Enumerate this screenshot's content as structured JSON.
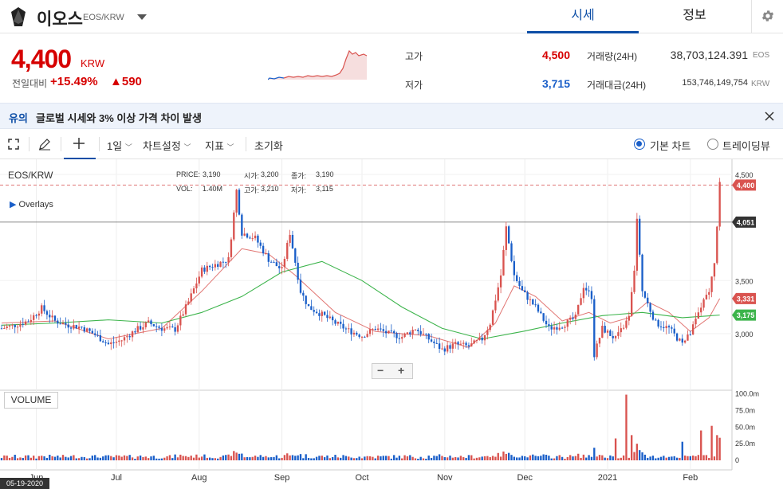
{
  "header": {
    "coin_name": "이오스",
    "pair": "EOS/KRW",
    "tabs": [
      {
        "label": "시세",
        "active": true
      },
      {
        "label": "정보",
        "active": false
      }
    ],
    "settings_icon": "gear-icon"
  },
  "summary": {
    "price": "4,400",
    "unit": "KRW",
    "change_label": "전일대비",
    "change_pct": "+15.49%",
    "change_abs": "▲590",
    "high_label": "고가",
    "high": "4,500",
    "low_label": "저가",
    "low": "3,715",
    "volume_label": "거래량(24H)",
    "volume": "38,703,124.391",
    "volume_unit": "EOS",
    "value_label": "거래대금(24H)",
    "value": "153,746,149,754",
    "value_unit": "KRW"
  },
  "notice": {
    "tag": "유의",
    "text": "글로벌 시세와 3% 이상 가격 차이 발생"
  },
  "toolbar": {
    "interval": "1일",
    "chart_settings": "차트설정",
    "indicators": "지표",
    "reset": "초기화",
    "basic_chart": "기본 차트",
    "tradingview": "트레이딩뷰"
  },
  "chart": {
    "pair": "EOS/KRW",
    "overlays": "Overlays",
    "ohlc": {
      "price_label": "PRICE:",
      "price": "3,190",
      "open_label": "시가:",
      "open": "3,200",
      "close_label": "종가:",
      "close": "3,190",
      "vol_label": "VOL:",
      "vol": "1.40M",
      "high_label": "고가:",
      "high": "3,210",
      "low_label": "저가:",
      "low": "3,115"
    },
    "volume_label": "VOLUME",
    "date_badge": "05-19-2020",
    "zoom_minus": "−",
    "zoom_plus": "+"
  },
  "chart_data": {
    "type": "candlestick",
    "price_axis": [
      {
        "label": "4,500",
        "value": 4500
      },
      {
        "label": "3,500",
        "value": 3500
      },
      {
        "label": "3,000",
        "value": 3000
      }
    ],
    "price_markers": [
      {
        "label": "4,400",
        "value": 4400,
        "color": "#d9534f"
      },
      {
        "label": "4,051",
        "value": 4051,
        "color": "#333333"
      },
      {
        "label": "3,331",
        "value": 3331,
        "color": "#d9534f"
      },
      {
        "label": "3,175",
        "value": 3175,
        "color": "#3cb44b"
      }
    ],
    "volume_axis": [
      {
        "label": "100.0m",
        "value": 100
      },
      {
        "label": "75.0m",
        "value": 75
      },
      {
        "label": "50.0m",
        "value": 50
      },
      {
        "label": "25.0m",
        "value": 25
      },
      {
        "label": "0",
        "value": 0
      }
    ],
    "x_labels": [
      "Jun",
      "Jul",
      "Aug",
      "Sep",
      "Oct",
      "Nov",
      "Dec",
      "2021",
      "Feb"
    ],
    "month_days": [
      13,
      43,
      74,
      105,
      135,
      166,
      196,
      227,
      258
    ],
    "close_path": [
      [
        0,
        3050
      ],
      [
        5,
        3080
      ],
      [
        10,
        3120
      ],
      [
        15,
        3240
      ],
      [
        20,
        3120
      ],
      [
        25,
        3080
      ],
      [
        30,
        3060
      ],
      [
        35,
        2990
      ],
      [
        40,
        2900
      ],
      [
        45,
        2940
      ],
      [
        50,
        3030
      ],
      [
        55,
        3100
      ],
      [
        60,
        3050
      ],
      [
        65,
        3040
      ],
      [
        70,
        3300
      ],
      [
        75,
        3600
      ],
      [
        80,
        3650
      ],
      [
        85,
        3700
      ],
      [
        88,
        4350
      ],
      [
        90,
        3950
      ],
      [
        95,
        3900
      ],
      [
        100,
        3700
      ],
      [
        105,
        3600
      ],
      [
        108,
        3950
      ],
      [
        112,
        3400
      ],
      [
        115,
        3250
      ],
      [
        120,
        3180
      ],
      [
        125,
        3100
      ],
      [
        130,
        3030
      ],
      [
        135,
        2980
      ],
      [
        140,
        3050
      ],
      [
        145,
        3000
      ],
      [
        150,
        2970
      ],
      [
        155,
        3050
      ],
      [
        160,
        2950
      ],
      [
        165,
        2850
      ],
      [
        170,
        2900
      ],
      [
        175,
        2880
      ],
      [
        180,
        2950
      ],
      [
        183,
        3100
      ],
      [
        187,
        3550
      ],
      [
        189,
        4000
      ],
      [
        192,
        3550
      ],
      [
        195,
        3400
      ],
      [
        200,
        3250
      ],
      [
        205,
        3050
      ],
      [
        210,
        3080
      ],
      [
        215,
        3150
      ],
      [
        218,
        3450
      ],
      [
        221,
        3350
      ],
      [
        222,
        2800
      ],
      [
        225,
        3050
      ],
      [
        230,
        2950
      ],
      [
        235,
        3150
      ],
      [
        237,
        3600
      ],
      [
        238,
        4100
      ],
      [
        240,
        3400
      ],
      [
        245,
        3100
      ],
      [
        250,
        3050
      ],
      [
        255,
        2900
      ],
      [
        258,
        3000
      ],
      [
        262,
        3250
      ],
      [
        265,
        3400
      ],
      [
        267,
        3650
      ],
      [
        269,
        4400
      ]
    ],
    "sma_short": [
      [
        0,
        3100
      ],
      [
        20,
        3120
      ],
      [
        40,
        2950
      ],
      [
        60,
        3050
      ],
      [
        75,
        3400
      ],
      [
        90,
        3800
      ],
      [
        100,
        3750
      ],
      [
        110,
        3550
      ],
      [
        125,
        3200
      ],
      [
        140,
        3020
      ],
      [
        160,
        2980
      ],
      [
        175,
        2870
      ],
      [
        185,
        3100
      ],
      [
        192,
        3450
      ],
      [
        200,
        3350
      ],
      [
        210,
        3120
      ],
      [
        220,
        3200
      ],
      [
        228,
        3100
      ],
      [
        235,
        3150
      ],
      [
        242,
        3300
      ],
      [
        250,
        3200
      ],
      [
        258,
        3020
      ],
      [
        265,
        3150
      ],
      [
        269,
        3331
      ]
    ],
    "sma_long": [
      [
        0,
        3080
      ],
      [
        20,
        3100
      ],
      [
        40,
        3130
      ],
      [
        60,
        3100
      ],
      [
        75,
        3200
      ],
      [
        90,
        3350
      ],
      [
        105,
        3580
      ],
      [
        120,
        3680
      ],
      [
        135,
        3500
      ],
      [
        150,
        3250
      ],
      [
        165,
        3050
      ],
      [
        180,
        2950
      ],
      [
        195,
        3020
      ],
      [
        210,
        3100
      ],
      [
        225,
        3170
      ],
      [
        240,
        3200
      ],
      [
        255,
        3150
      ],
      [
        269,
        3175
      ]
    ],
    "volume_spikes": [
      {
        "day": 230,
        "value": 33
      },
      {
        "day": 234,
        "value": 99
      },
      {
        "day": 236,
        "value": 38
      },
      {
        "day": 238,
        "value": 25
      },
      {
        "day": 255,
        "value": 28
      },
      {
        "day": 262,
        "value": 45
      },
      {
        "day": 266,
        "value": 52
      },
      {
        "day": 268,
        "value": 38
      },
      {
        "day": 269,
        "value": 34
      }
    ]
  }
}
